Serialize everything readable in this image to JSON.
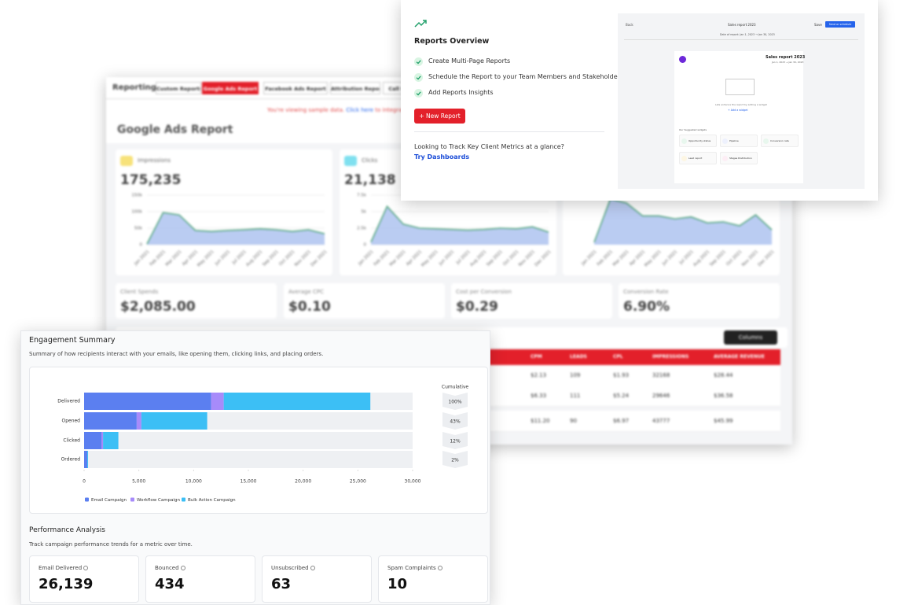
{
  "back_report": {
    "brand": "Reporting",
    "tabs": [
      "Custom Reports",
      "Google Ads Report",
      "Facebook Ads Report",
      "Attribution Report",
      "Call Re"
    ],
    "notice": {
      "text": "You're viewing sample data.",
      "link": "Click here",
      "rest": "to integrate g"
    },
    "title": "Google Ads Report",
    "kpis": [
      {
        "label": "Impressions",
        "value": "175,235"
      },
      {
        "label": "Clicks",
        "value": "21,138"
      }
    ],
    "metrics": [
      {
        "label": "Client Spends",
        "value": "$2,085.00"
      },
      {
        "label": "Average CPC",
        "value": "$0.10"
      },
      {
        "label": "Cost per Conversion",
        "value": "$0.29"
      },
      {
        "label": "Conversion Rate",
        "value": "6.90%"
      }
    ],
    "columns_button": "Columns",
    "table": {
      "headers": [
        "CPM",
        "LEADS",
        "CPL",
        "IMPRESSIONS",
        "AVERAGE REVENUE"
      ],
      "rows": [
        [
          "$2.13",
          "109",
          "$1.93",
          "32168",
          "$28.44"
        ],
        [
          "$6.33",
          "111",
          "$5.24",
          "29646",
          "$36.58"
        ],
        [
          "$11.20",
          "90",
          "$6.97",
          "43777",
          "$45.99"
        ]
      ]
    }
  },
  "overview": {
    "title": "Reports Overview",
    "features": [
      "Create Multi-Page Reports",
      "Schedule the Report to your Team Members and Stakeholders",
      "Add Reports Insights"
    ],
    "button": "New Report",
    "prompt": "Looking to Track Key Client Metrics at a glance?",
    "link": "Try Dashboards",
    "preview": {
      "back": "Back",
      "title": "Sales report 2023",
      "save": "Save",
      "send": "Send or schedule",
      "date": "Date of report: Jan 1, 2023 → Jan 30, 2023",
      "card_title": "Sales report 2023",
      "card_date": "Jan 1, 2023 → Jan 30, 2023",
      "empty_text": "Lets enhance the report by adding a widget",
      "add_widget": "+ Add a widget",
      "suggested": "Our Suggested widgets",
      "widgets": [
        "Opportunity status",
        "Pipeline",
        "Conversion rate",
        "Lead report",
        "Stages Distribution"
      ]
    }
  },
  "engagement": {
    "title": "Engagement Summary",
    "subtitle": "Summary of how recipients interact with your emails, like opening them, clicking links, and placing orders."
  },
  "performance": {
    "title": "Performance Analysis",
    "subtitle": "Track campaign performance trends for a metric over time.",
    "cards": [
      {
        "label": "Email Delivered",
        "value": "26,139"
      },
      {
        "label": "Bounced",
        "value": "434"
      },
      {
        "label": "Unsubscribed",
        "value": "63"
      },
      {
        "label": "Spam Complaints",
        "value": "10"
      }
    ]
  },
  "chart_data": [
    {
      "type": "bar",
      "orientation": "horizontal",
      "stacked": true,
      "categories": [
        "Delivered",
        "Opened",
        "Clicked",
        "Ordered"
      ],
      "series": [
        {
          "name": "Email Campaign",
          "color": "#5b7ff0",
          "values": [
            11600,
            4800,
            1580,
            290
          ]
        },
        {
          "name": "Workflow Campaign",
          "color": "#a78bfa",
          "values": [
            1150,
            430,
            150,
            0
          ]
        },
        {
          "name": "Bulk Action Campaign",
          "color": "#3cbff5",
          "values": [
            13389,
            6010,
            1400,
            70
          ]
        }
      ],
      "xlim": [
        0,
        30000
      ],
      "xticks": [
        0,
        {
          "value": 5000,
          "label": "5,000"
        },
        {
          "value": 10000,
          "label": "10,000"
        },
        {
          "value": 15000,
          "label": "15,000"
        },
        {
          "value": 20000,
          "label": "20,000"
        },
        {
          "value": 25000,
          "label": "25,000"
        },
        {
          "value": 30000,
          "label": "30,000"
        }
      ],
      "cumulative": {
        "label": "Cumulative",
        "values": [
          100,
          43,
          12,
          2
        ],
        "value_labels": [
          "100%",
          "43%",
          "12%",
          "2%"
        ]
      },
      "legend": "bottom-left"
    },
    {
      "type": "line",
      "categories": [
        "Jan 2021",
        "Feb 2021",
        "Mar 2021",
        "Apr 2021",
        "May 2021",
        "Jun 2021",
        "Jul 2021",
        "Aug 2021",
        "Sep 2021",
        "Oct 2021",
        "Nov 2021",
        "Dec 2021"
      ],
      "values": [
        2000,
        97000,
        90000,
        43000,
        40000,
        43000,
        45000,
        48000,
        45000,
        40000,
        45000,
        33000
      ],
      "color": "#5aa985",
      "fill": "#aec3f0",
      "ylim": [
        0,
        150000
      ],
      "yticks": [
        0,
        {
          "value": 50000,
          "label": "50k"
        },
        {
          "value": 100000,
          "label": "100k"
        },
        {
          "value": 150000,
          "label": "150k"
        }
      ],
      "grid": true
    },
    {
      "type": "line",
      "categories": [
        "Jan 2021",
        "Feb 2021",
        "Mar 2021",
        "Apr 2021",
        "May 2021",
        "Jun 2021",
        "Jul 2021",
        "Aug 2021",
        "Sep 2021",
        "Oct 2021",
        "Nov 2021",
        "Dec 2021"
      ],
      "values": [
        400,
        5800,
        3100,
        2500,
        2400,
        2300,
        2200,
        2300,
        2500,
        2400,
        2700,
        1900
      ],
      "color": "#5aa985",
      "fill": "#aec3f0",
      "ylim": [
        0,
        7500
      ],
      "yticks": [
        0,
        {
          "value": 2500,
          "label": "2.5k"
        },
        {
          "value": 5000,
          "label": "5k"
        },
        {
          "value": 7500,
          "label": "7.5k"
        }
      ],
      "grid": true
    },
    {
      "type": "line",
      "categories": [
        "Jan 2021",
        "Feb 2021",
        "Mar 2021",
        "Apr 2021",
        "May 2021",
        "Jun 2021",
        "Jul 2021",
        "Aug 2021",
        "Sep 2021",
        "Oct 2021",
        "Nov 2021",
        "Dec 2021"
      ],
      "values": [
        0.5,
        9.2,
        8.4,
        5.8,
        5.8,
        5.2,
        5.6,
        4.4,
        4.6,
        3.8,
        6,
        3
      ],
      "color": "#5aa985",
      "fill": "#aec3f0",
      "ylim": [
        0,
        10
      ],
      "grid": false
    }
  ]
}
